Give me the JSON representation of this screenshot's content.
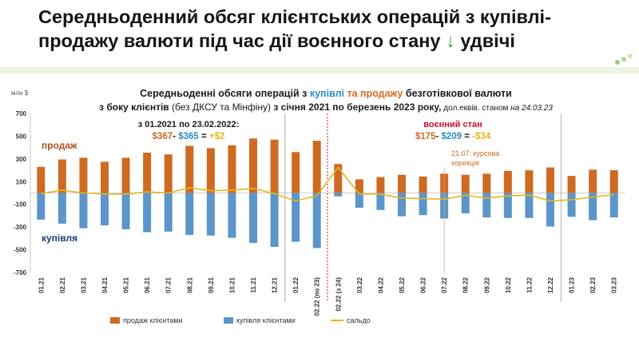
{
  "headline": {
    "line1": "Середньоденний обсяг клієнтських операцій з купівлі-",
    "line2_text": "продажу валюти під час дії воєнного стану",
    "arrow": "↓",
    "line2_end": "удвічі"
  },
  "chart_data": {
    "type": "bar",
    "title_parts": {
      "p1": "Середньоденні обсяги операцій з ",
      "buy": "купівлі",
      "and": " та ",
      "sell": "продажу",
      "p2": " безготівкової валюти"
    },
    "subtitle_parts": {
      "p1": "з боку клієнтів",
      "p2": " (без ДКСУ та Мінфіну) ",
      "p3": " з січня 2021 по березень 2023 року,",
      "p4": " дол.еквів. станом ",
      "p5": "на 24.03.23"
    },
    "unit_label": "млн $",
    "ylim": [
      -700,
      700
    ],
    "yticks": [
      "700",
      "500",
      "300",
      "100",
      "-100",
      "-300",
      "-500",
      "-700"
    ],
    "ytick_values": [
      700,
      500,
      300,
      100,
      -100,
      -300,
      -500,
      -700
    ],
    "categories": [
      "01.21",
      "02.21",
      "03.21",
      "04.21",
      "05.21",
      "06.21",
      "07.21",
      "08.21",
      "09.21",
      "10.21",
      "11.21",
      "12.21",
      "01.22",
      "02.22 (по 23)",
      "02.22 (з 24)",
      "03.22",
      "04.22",
      "05.22",
      "06.22",
      "07.22",
      "08.22",
      "09.22",
      "10.22",
      "11.22",
      "12.22",
      "01.23",
      "02.23",
      "03.23"
    ],
    "series": [
      {
        "name": "продаж клієнтами",
        "color": "#cf6a22",
        "values": [
          230,
          295,
          310,
          275,
          310,
          355,
          340,
          415,
          395,
          420,
          480,
          470,
          360,
          460,
          255,
          120,
          140,
          160,
          145,
          170,
          160,
          170,
          195,
          200,
          225,
          150,
          205,
          200
        ]
      },
      {
        "name": "купівля  клієнтами",
        "color": "#5b95c9",
        "values": [
          -235,
          -270,
          -310,
          -285,
          -320,
          -345,
          -340,
          -370,
          -375,
          -395,
          -440,
          -475,
          -430,
          -485,
          -30,
          -130,
          -150,
          -205,
          -195,
          -225,
          -180,
          -215,
          -220,
          -220,
          -295,
          -210,
          -240,
          -215
        ]
      },
      {
        "name": "сальдо",
        "color": "#e3b71b",
        "values": [
          -5,
          25,
          0,
          -10,
          -10,
          10,
          0,
          45,
          20,
          25,
          40,
          -5,
          -70,
          -25,
          225,
          -10,
          -10,
          -45,
          -50,
          -55,
          -20,
          -45,
          -25,
          -20,
          -70,
          -60,
          -35,
          -15
        ]
      }
    ],
    "series_labels": {
      "sell": "продаж",
      "buy": "купівля"
    },
    "annotations": {
      "period1_heading": "з 01.2021 по 23.02.2022:",
      "period1_sell": "$367",
      "period1_dash": "- ",
      "period1_buy": "$365",
      "period1_eq": " = ",
      "period1_result": "+$2",
      "period2_heading": "воєнний стан",
      "period2_sell": "$175",
      "period2_dash": "- ",
      "period2_buy": "$209",
      "period2_eq": " = ",
      "period2_result": "-$34",
      "correction_line1": "21.07: курсова",
      "correction_line2": "корекція"
    },
    "legend": {
      "placement": "bottom"
    }
  }
}
